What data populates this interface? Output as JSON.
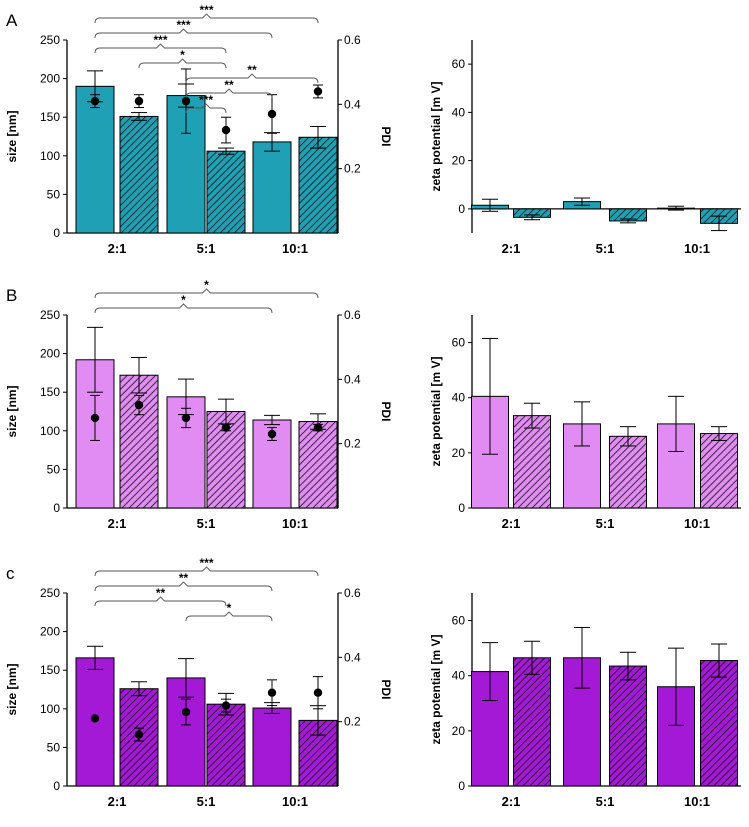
{
  "figure": {
    "panels": [
      {
        "label": "A",
        "color": "#1fa0b4",
        "size": {
          "ylabel": "size [nm]",
          "y2label": "PDI",
          "ylim": [
            0,
            250
          ],
          "yticks": [
            0,
            50,
            100,
            150,
            200,
            250
          ],
          "y2lim": [
            0,
            0.6
          ],
          "y2ticks": [
            "0.2",
            "0.4",
            "0.6"
          ],
          "categories": [
            "2:1",
            "5:1",
            "10:1"
          ],
          "bars": [
            {
              "value": 190,
              "err": 20,
              "hatched": false
            },
            {
              "value": 151,
              "err": 5,
              "hatched": true
            },
            {
              "value": 178,
              "err": 15,
              "hatched": false
            },
            {
              "value": 106,
              "err": 4,
              "hatched": true
            },
            {
              "value": 118,
              "err": 12,
              "hatched": false
            },
            {
              "value": 124,
              "err": 14,
              "hatched": true
            }
          ],
          "pdi": [
            {
              "value": 0.41,
              "err": 0.02
            },
            {
              "value": 0.41,
              "err": 0.02
            },
            {
              "value": 0.41,
              "err": 0.1
            },
            {
              "value": 0.32,
              "err": 0.04
            },
            {
              "value": 0.37,
              "err": 0.06
            },
            {
              "value": 0.44,
              "err": 0.02
            }
          ],
          "significance": [
            {
              "from": 0,
              "to": 5,
              "label": "***",
              "level": 0
            },
            {
              "from": 0,
              "to": 4,
              "label": "***",
              "level": 1
            },
            {
              "from": 0,
              "to": 3,
              "label": "***",
              "level": 2
            },
            {
              "from": 1,
              "to": 3,
              "label": "*",
              "level": 3
            },
            {
              "from": 2,
              "to": 5,
              "label": "**",
              "level": 4
            },
            {
              "from": 2,
              "to": 4,
              "label": "**",
              "level": 5
            },
            {
              "from": 2,
              "to": 3,
              "label": "***",
              "level": 6
            }
          ]
        },
        "zeta": {
          "ylabel": "zeta potential [m V]",
          "ylim": [
            -10,
            70
          ],
          "yticks": [
            0,
            20,
            40,
            60
          ],
          "categories": [
            "2:1",
            "5:1",
            "10:1"
          ],
          "bars": [
            {
              "value": 1.5,
              "err": 2.5,
              "hatched": false
            },
            {
              "value": -3.5,
              "err": 1.0,
              "hatched": true
            },
            {
              "value": 3.0,
              "err": 1.5,
              "hatched": false
            },
            {
              "value": -5.0,
              "err": 0.8,
              "hatched": true
            },
            {
              "value": 0.3,
              "err": 0.8,
              "hatched": false
            },
            {
              "value": -6.0,
              "err": 3.0,
              "hatched": true
            }
          ]
        }
      },
      {
        "label": "B",
        "color": "#e08cf2",
        "size": {
          "ylabel": "size [nm]",
          "y2label": "PDI",
          "ylim": [
            0,
            250
          ],
          "yticks": [
            0,
            50,
            100,
            150,
            200,
            250
          ],
          "y2lim": [
            0,
            0.6
          ],
          "y2ticks": [
            "0.2",
            "0.4",
            "0.6"
          ],
          "categories": [
            "2:1",
            "5:1",
            "10:1"
          ],
          "bars": [
            {
              "value": 192,
              "err": 42,
              "hatched": false
            },
            {
              "value": 172,
              "err": 23,
              "hatched": true
            },
            {
              "value": 144,
              "err": 23,
              "hatched": false
            },
            {
              "value": 125,
              "err": 16,
              "hatched": true
            },
            {
              "value": 114,
              "err": 6,
              "hatched": false
            },
            {
              "value": 112,
              "err": 10,
              "hatched": true
            }
          ],
          "pdi": [
            {
              "value": 0.28,
              "err": 0.07
            },
            {
              "value": 0.32,
              "err": 0.03
            },
            {
              "value": 0.28,
              "err": 0.03
            },
            {
              "value": 0.25,
              "err": 0.01
            },
            {
              "value": 0.23,
              "err": 0.02
            },
            {
              "value": 0.25,
              "err": 0.01
            }
          ],
          "significance": [
            {
              "from": 0,
              "to": 5,
              "label": "*",
              "level": 0
            },
            {
              "from": 0,
              "to": 4,
              "label": "*",
              "level": 1
            }
          ]
        },
        "zeta": {
          "ylabel": "zeta potential [m V]",
          "ylim": [
            0,
            70
          ],
          "yticks": [
            0,
            20,
            40,
            60
          ],
          "categories": [
            "2:1",
            "5:1",
            "10:1"
          ],
          "bars": [
            {
              "value": 40.5,
              "err": 21,
              "hatched": false
            },
            {
              "value": 33.5,
              "err": 4.5,
              "hatched": true
            },
            {
              "value": 30.5,
              "err": 8,
              "hatched": false
            },
            {
              "value": 26,
              "err": 3.5,
              "hatched": true
            },
            {
              "value": 30.5,
              "err": 10,
              "hatched": false
            },
            {
              "value": 27,
              "err": 2.5,
              "hatched": true
            }
          ]
        }
      },
      {
        "label": "c",
        "color": "#a419d6",
        "size": {
          "ylabel": "size [nm]",
          "y2label": "PDI",
          "ylim": [
            0,
            250
          ],
          "yticks": [
            0,
            50,
            100,
            150,
            200,
            250
          ],
          "y2lim": [
            0,
            0.6
          ],
          "y2ticks": [
            "0.2",
            "0.4",
            "0.6"
          ],
          "categories": [
            "2:1",
            "5:1",
            "10:1"
          ],
          "bars": [
            {
              "value": 166,
              "err": 15,
              "hatched": false
            },
            {
              "value": 126,
              "err": 9,
              "hatched": true
            },
            {
              "value": 140,
              "err": 25,
              "hatched": false
            },
            {
              "value": 106,
              "err": 14,
              "hatched": true
            },
            {
              "value": 101,
              "err": 7,
              "hatched": false
            },
            {
              "value": 85,
              "err": 19,
              "hatched": true
            }
          ],
          "pdi": [
            {
              "value": 0.21,
              "err": 0.0
            },
            {
              "value": 0.16,
              "err": 0.02
            },
            {
              "value": 0.23,
              "err": 0.04
            },
            {
              "value": 0.25,
              "err": 0.02
            },
            {
              "value": 0.29,
              "err": 0.04
            },
            {
              "value": 0.29,
              "err": 0.05
            }
          ],
          "significance": [
            {
              "from": 0,
              "to": 5,
              "label": "***",
              "level": 0
            },
            {
              "from": 0,
              "to": 4,
              "label": "**",
              "level": 1
            },
            {
              "from": 0,
              "to": 3,
              "label": "**",
              "level": 2
            },
            {
              "from": 2,
              "to": 4,
              "label": "*",
              "level": 3
            }
          ]
        },
        "zeta": {
          "ylabel": "zeta potential [m V]",
          "ylim": [
            0,
            70
          ],
          "yticks": [
            0,
            20,
            40,
            60
          ],
          "categories": [
            "2:1",
            "5:1",
            "10:1"
          ],
          "bars": [
            {
              "value": 41.5,
              "err": 10.5,
              "hatched": false
            },
            {
              "value": 46.5,
              "err": 6,
              "hatched": true
            },
            {
              "value": 46.5,
              "err": 11,
              "hatched": false
            },
            {
              "value": 43.5,
              "err": 5,
              "hatched": true
            },
            {
              "value": 36,
              "err": 14,
              "hatched": false
            },
            {
              "value": 45.5,
              "err": 6,
              "hatched": true
            }
          ]
        }
      }
    ]
  }
}
